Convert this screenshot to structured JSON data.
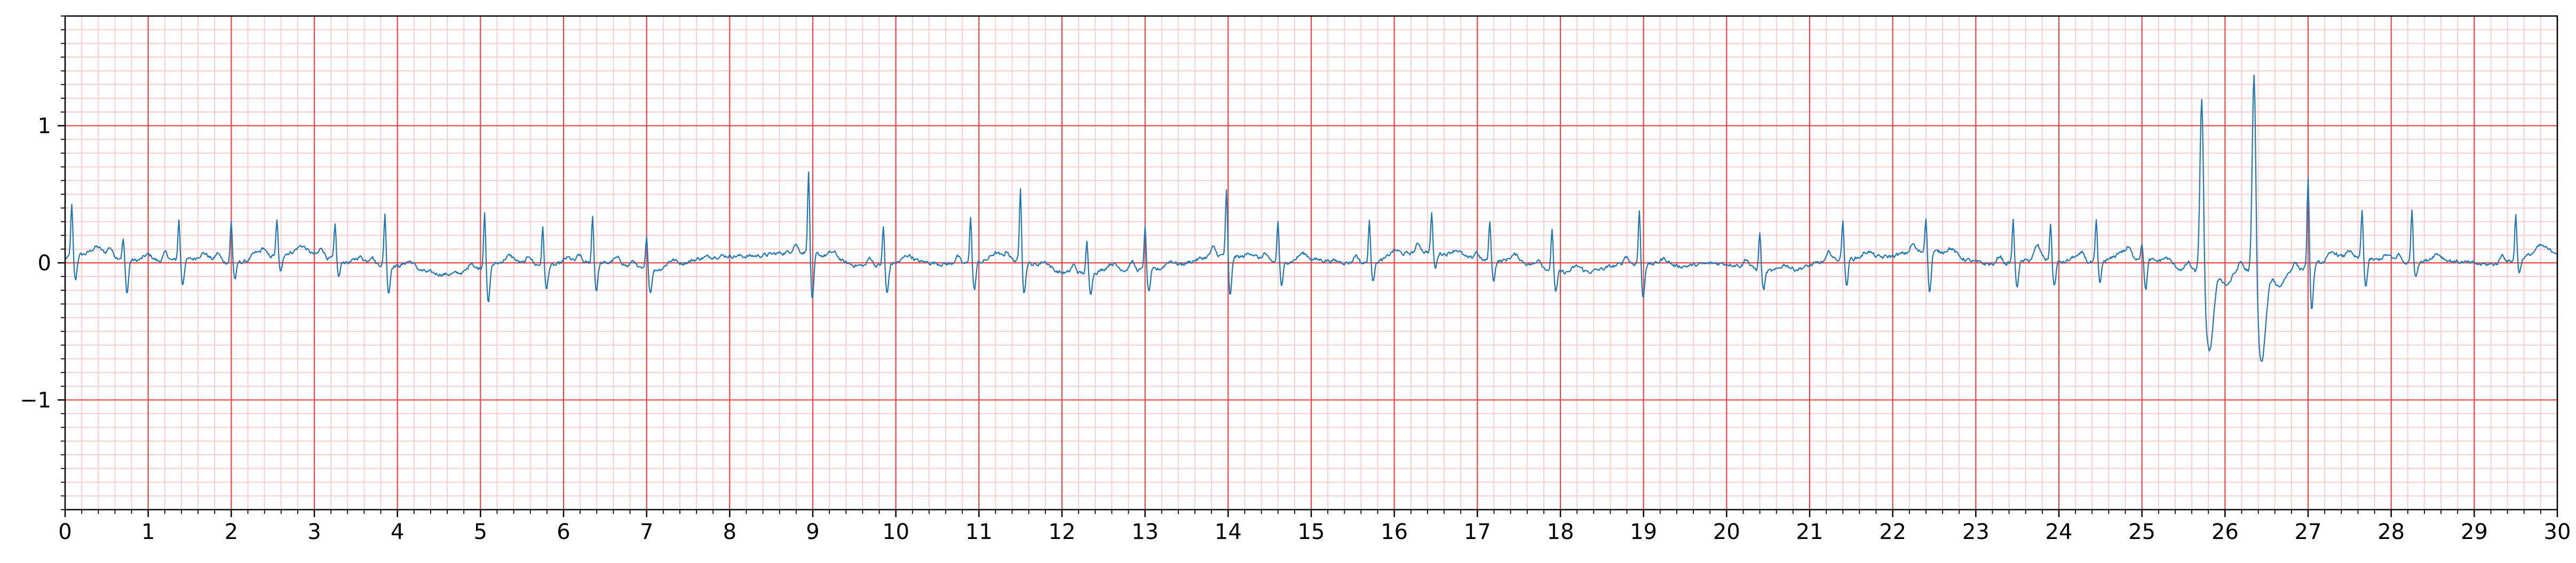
{
  "chart_data": {
    "type": "line",
    "title": "",
    "xlabel": "",
    "ylabel": "",
    "xlim": [
      0,
      30
    ],
    "ylim": [
      -1.8,
      1.8
    ],
    "grid": {
      "major": true,
      "minor": true,
      "major_x_step": 1,
      "minor_x_step": 0.2,
      "major_y_step": 1,
      "minor_y_step": 0.1,
      "major_color": "#ef4444",
      "minor_color": "#fbc4c4"
    },
    "line_color": "#1f77b4",
    "x_ticks": [
      "0",
      "1",
      "2",
      "3",
      "4",
      "5",
      "6",
      "7",
      "8",
      "9",
      "10",
      "11",
      "12",
      "13",
      "14",
      "15",
      "16",
      "17",
      "18",
      "19",
      "20",
      "21",
      "22",
      "23",
      "24",
      "25",
      "26",
      "27",
      "28",
      "29",
      "30"
    ],
    "y_ticks": [
      {
        "value": 1,
        "label": "1"
      },
      {
        "value": 0,
        "label": "0"
      },
      {
        "value": -1,
        "label": "−1"
      }
    ],
    "beats": [
      {
        "t": 0.08,
        "r": 0.38,
        "s": -0.18
      },
      {
        "t": 0.7,
        "r": 0.15,
        "s": -0.25
      },
      {
        "t": 1.37,
        "r": 0.3,
        "s": -0.18
      },
      {
        "t": 2.0,
        "r": 0.3,
        "s": -0.12
      },
      {
        "t": 2.55,
        "r": 0.25,
        "s": -0.14
      },
      {
        "t": 3.25,
        "r": 0.25,
        "s": -0.12
      },
      {
        "t": 3.85,
        "r": 0.38,
        "s": -0.2
      },
      {
        "t": 5.05,
        "r": 0.42,
        "s": -0.28
      },
      {
        "t": 5.75,
        "r": 0.28,
        "s": -0.18
      },
      {
        "t": 6.35,
        "r": 0.35,
        "s": -0.2
      },
      {
        "t": 7.0,
        "r": 0.26,
        "s": -0.16
      },
      {
        "t": 8.95,
        "r": 0.6,
        "s": -0.35
      },
      {
        "t": 9.85,
        "r": 0.28,
        "s": -0.22
      },
      {
        "t": 10.9,
        "r": 0.35,
        "s": -0.2
      },
      {
        "t": 11.5,
        "r": 0.55,
        "s": -0.22
      },
      {
        "t": 12.3,
        "r": 0.22,
        "s": -0.15
      },
      {
        "t": 13.0,
        "r": 0.32,
        "s": -0.16
      },
      {
        "t": 13.98,
        "r": 0.48,
        "s": -0.3
      },
      {
        "t": 14.6,
        "r": 0.3,
        "s": -0.18
      },
      {
        "t": 15.7,
        "r": 0.3,
        "s": -0.12
      },
      {
        "t": 16.45,
        "r": 0.28,
        "s": -0.12
      },
      {
        "t": 17.15,
        "r": 0.3,
        "s": -0.14
      },
      {
        "t": 17.9,
        "r": 0.3,
        "s": -0.15
      },
      {
        "t": 18.95,
        "r": 0.4,
        "s": -0.25
      },
      {
        "t": 20.4,
        "r": 0.28,
        "s": -0.14
      },
      {
        "t": 21.4,
        "r": 0.3,
        "s": -0.2
      },
      {
        "t": 22.4,
        "r": 0.26,
        "s": -0.3
      },
      {
        "t": 23.45,
        "r": 0.32,
        "s": -0.18
      },
      {
        "t": 23.9,
        "r": 0.28,
        "s": -0.18
      },
      {
        "t": 24.45,
        "r": 0.3,
        "s": -0.16
      },
      {
        "t": 25.0,
        "r": 0.13,
        "s": -0.22
      },
      {
        "t": 25.72,
        "r": 1.36,
        "s": -0.58
      },
      {
        "t": 26.35,
        "r": 1.55,
        "s": -0.66
      },
      {
        "t": 27.0,
        "r": 0.65,
        "s": -0.32
      },
      {
        "t": 27.65,
        "r": 0.35,
        "s": -0.2
      },
      {
        "t": 28.25,
        "r": 0.4,
        "s": -0.1
      },
      {
        "t": 29.5,
        "r": 0.33,
        "s": -0.1
      }
    ]
  }
}
